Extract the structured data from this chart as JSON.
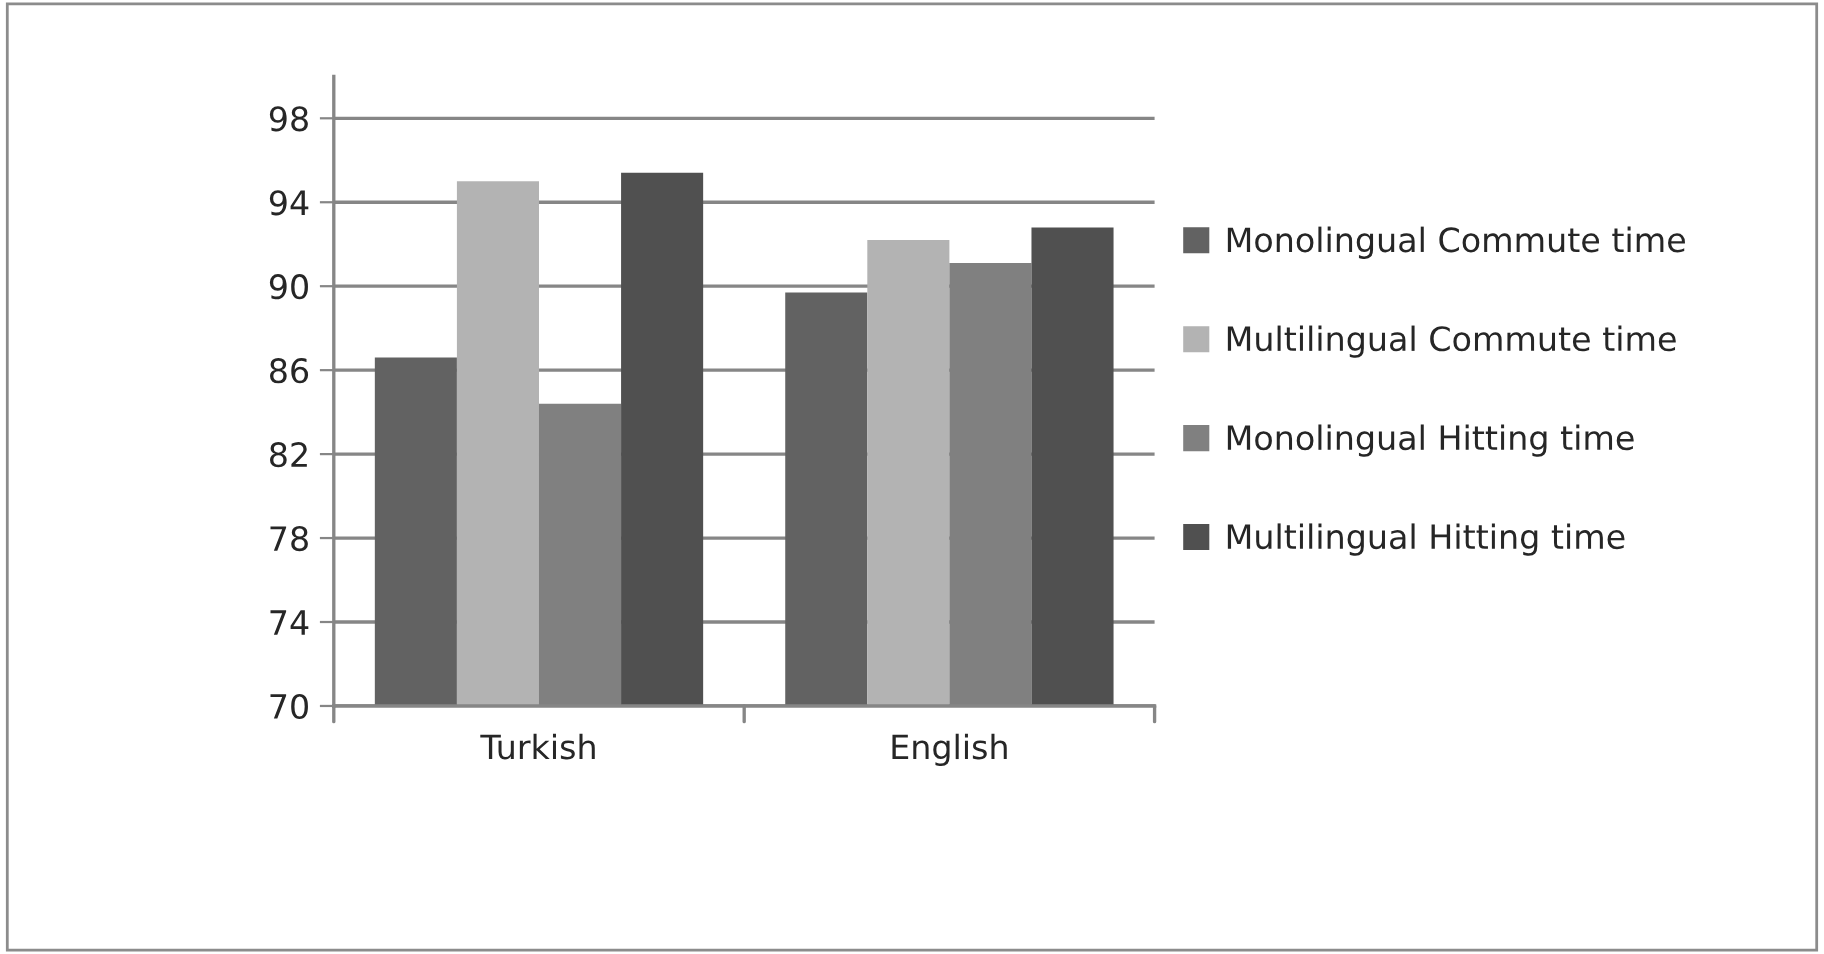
{
  "chart_data": {
    "type": "bar",
    "categories": [
      "Turkish",
      "English"
    ],
    "series": [
      {
        "name": "Monolingual Commute time",
        "color": "#626262",
        "values": [
          86.6,
          89.7
        ]
      },
      {
        "name": "Multilingual Commute time",
        "color": "#b3b3b3",
        "values": [
          95.0,
          92.2
        ]
      },
      {
        "name": "Monolingual Hitting time",
        "color": "#808080",
        "values": [
          84.4,
          91.1
        ]
      },
      {
        "name": "Multilingual Hitting time",
        "color": "#505050",
        "values": [
          95.4,
          92.8
        ]
      }
    ],
    "ylim": [
      70,
      100
    ],
    "yticks": [
      70,
      74,
      78,
      82,
      86,
      90,
      94,
      98
    ],
    "grid": "y",
    "legend": "right"
  }
}
